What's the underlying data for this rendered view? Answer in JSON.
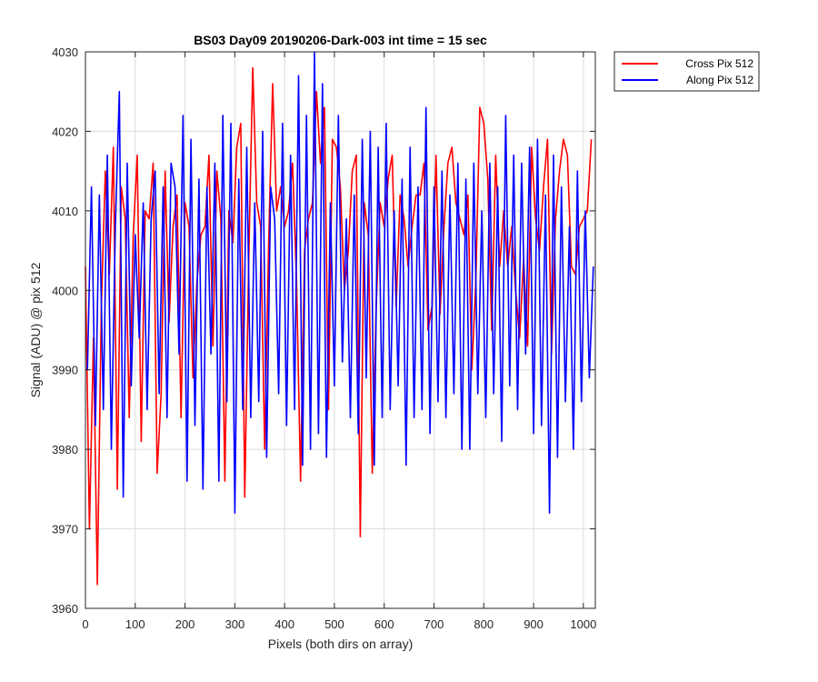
{
  "chart_data": {
    "type": "line",
    "title": "BS03 Day09 20190206-Dark-003 int time = 15 sec",
    "xlabel": "Pixels (both dirs on array)",
    "ylabel": "Signal (ADU) @ pix 512",
    "xlim": [
      0,
      1024
    ],
    "ylim": [
      3960,
      4030
    ],
    "xticks": [
      0,
      100,
      200,
      300,
      400,
      500,
      600,
      700,
      800,
      900,
      1000
    ],
    "yticks": [
      3960,
      3970,
      3980,
      3990,
      4000,
      4010,
      4020,
      4030
    ],
    "grid": true,
    "legend_position": "outside-top-right",
    "series": [
      {
        "name": "Cross Pix 512",
        "color": "#ff0000",
        "x_start": 0,
        "x_step": 8,
        "values": [
          4003,
          3970,
          3994,
          3963,
          3998,
          4015,
          4002,
          4018,
          3975,
          4013,
          4009,
          3984,
          4007,
          4017,
          3981,
          4010,
          4009,
          4016,
          3977,
          3987,
          4015,
          3996,
          4008,
          4012,
          3984,
          4011,
          4008,
          3989,
          4001,
          4007,
          4008,
          4017,
          3993,
          4015,
          4009,
          3976,
          4010,
          4006,
          4018,
          4021,
          3974,
          4004,
          4028,
          4011,
          4008,
          3980,
          4006,
          4026,
          4010,
          4013,
          4008,
          4010,
          4016,
          4001,
          3976,
          4005,
          4009,
          4011,
          4025,
          4016,
          4023,
          3985,
          4019,
          4018,
          4013,
          4000,
          4005,
          4015,
          4017,
          3969,
          4011,
          4007,
          3977,
          3998,
          4011,
          4008,
          4014,
          4017,
          3998,
          4012,
          4009,
          4003,
          4008,
          4012,
          4012,
          4016,
          3995,
          3998,
          4017,
          3997,
          4008,
          4016,
          4018,
          4011,
          4009,
          4007,
          4012,
          3990,
          4001,
          4023,
          4021,
          4014,
          3995,
          4017,
          4003,
          4010,
          4003,
          4008,
          4000,
          3994,
          4004,
          3993,
          4018,
          4009,
          4005,
          4013,
          4019,
          3992,
          4009,
          4015,
          4019,
          4017,
          4003,
          4002,
          4008,
          4009,
          4010,
          4019
        ]
      },
      {
        "name": "Along Pix 512",
        "color": "#0000ff",
        "x_start": 4,
        "x_step": 8,
        "values": [
          3990,
          4013,
          3983,
          4012,
          3985,
          4017,
          3980,
          4008,
          4025,
          3974,
          4016,
          3988,
          4007,
          3994,
          4011,
          3985,
          4009,
          4015,
          3987,
          4013,
          3984,
          4016,
          4013,
          3992,
          4022,
          3976,
          4019,
          3983,
          4014,
          3975,
          4013,
          3992,
          4016,
          3976,
          4022,
          3986,
          4021,
          3972,
          4014,
          3985,
          4018,
          3984,
          4011,
          3986,
          4020,
          3979,
          4013,
          4009,
          3987,
          4021,
          3983,
          4017,
          3985,
          4027,
          3978,
          4022,
          3980,
          4030,
          3982,
          4026,
          3979,
          4011,
          3988,
          4022,
          3991,
          4009,
          3984,
          4012,
          3982,
          4019,
          3989,
          4020,
          3978,
          4018,
          3984,
          4021,
          3985,
          4010,
          3988,
          4014,
          3978,
          4018,
          3984,
          4013,
          3985,
          4023,
          3982,
          4013,
          3986,
          4015,
          3984,
          4012,
          3987,
          4016,
          3980,
          4014,
          3980,
          4016,
          3987,
          4010,
          3984,
          4016,
          3987,
          4013,
          3981,
          4022,
          3988,
          4017,
          3985,
          4016,
          3992,
          4018,
          3982,
          4019,
          3983,
          4012,
          3972,
          4017,
          3979,
          4013,
          3986,
          4008,
          3980,
          4015,
          3986,
          4010,
          3989,
          4003
        ]
      }
    ]
  }
}
